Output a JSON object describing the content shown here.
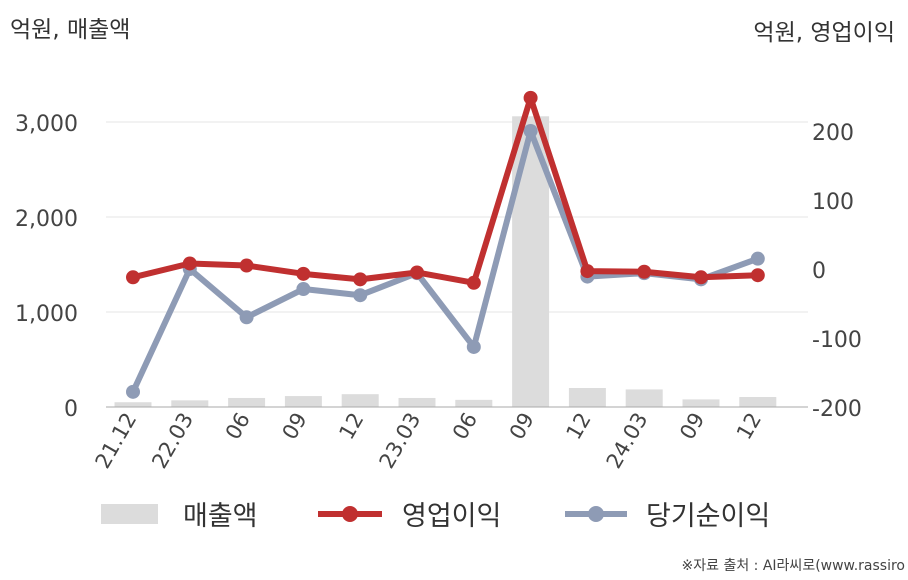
{
  "chart_data": {
    "type": "bar+line",
    "left_axis_title": "억원, 매출액",
    "right_axis_title": "억원, 영업이익",
    "categories": [
      "21.12",
      "22.03",
      "06",
      "09",
      "12",
      "23.03",
      "06",
      "09",
      "12",
      "24.03",
      "09",
      "12"
    ],
    "y_left": {
      "min": 0,
      "max": 3000,
      "ticks": [
        0,
        1000,
        2000,
        3000
      ],
      "tick_labels": [
        "0",
        "1,000",
        "2,000",
        "3,000"
      ]
    },
    "y_right": {
      "min": -200,
      "max": 200,
      "ticks": [
        -200,
        -100,
        0,
        100,
        200
      ],
      "tick_labels": [
        "-200",
        "-100",
        "0",
        "100",
        "200"
      ]
    },
    "grid": "horizontal",
    "legend_position": "bottom",
    "series": [
      {
        "name": "매출액",
        "kind": "bar",
        "axis": "left",
        "color": "#dcdcdc",
        "values": [
          50,
          70,
          95,
          115,
          135,
          95,
          75,
          3060,
          200,
          185,
          80,
          105
        ]
      },
      {
        "name": "영업이익",
        "kind": "line",
        "axis": "right",
        "color": "#c03030",
        "values": [
          -12,
          8,
          5,
          -7,
          -15,
          -5,
          -20,
          248,
          -3,
          -4,
          -12,
          -9
        ]
      },
      {
        "name": "당기순이익",
        "kind": "line",
        "axis": "right",
        "color": "#8e9bb5",
        "values": [
          -178,
          0,
          -70,
          -29,
          -38,
          -6,
          -113,
          200,
          -11,
          -6,
          -15,
          15
        ]
      }
    ],
    "source": "※자료 출처 : AI라씨로(www.rassiro"
  }
}
